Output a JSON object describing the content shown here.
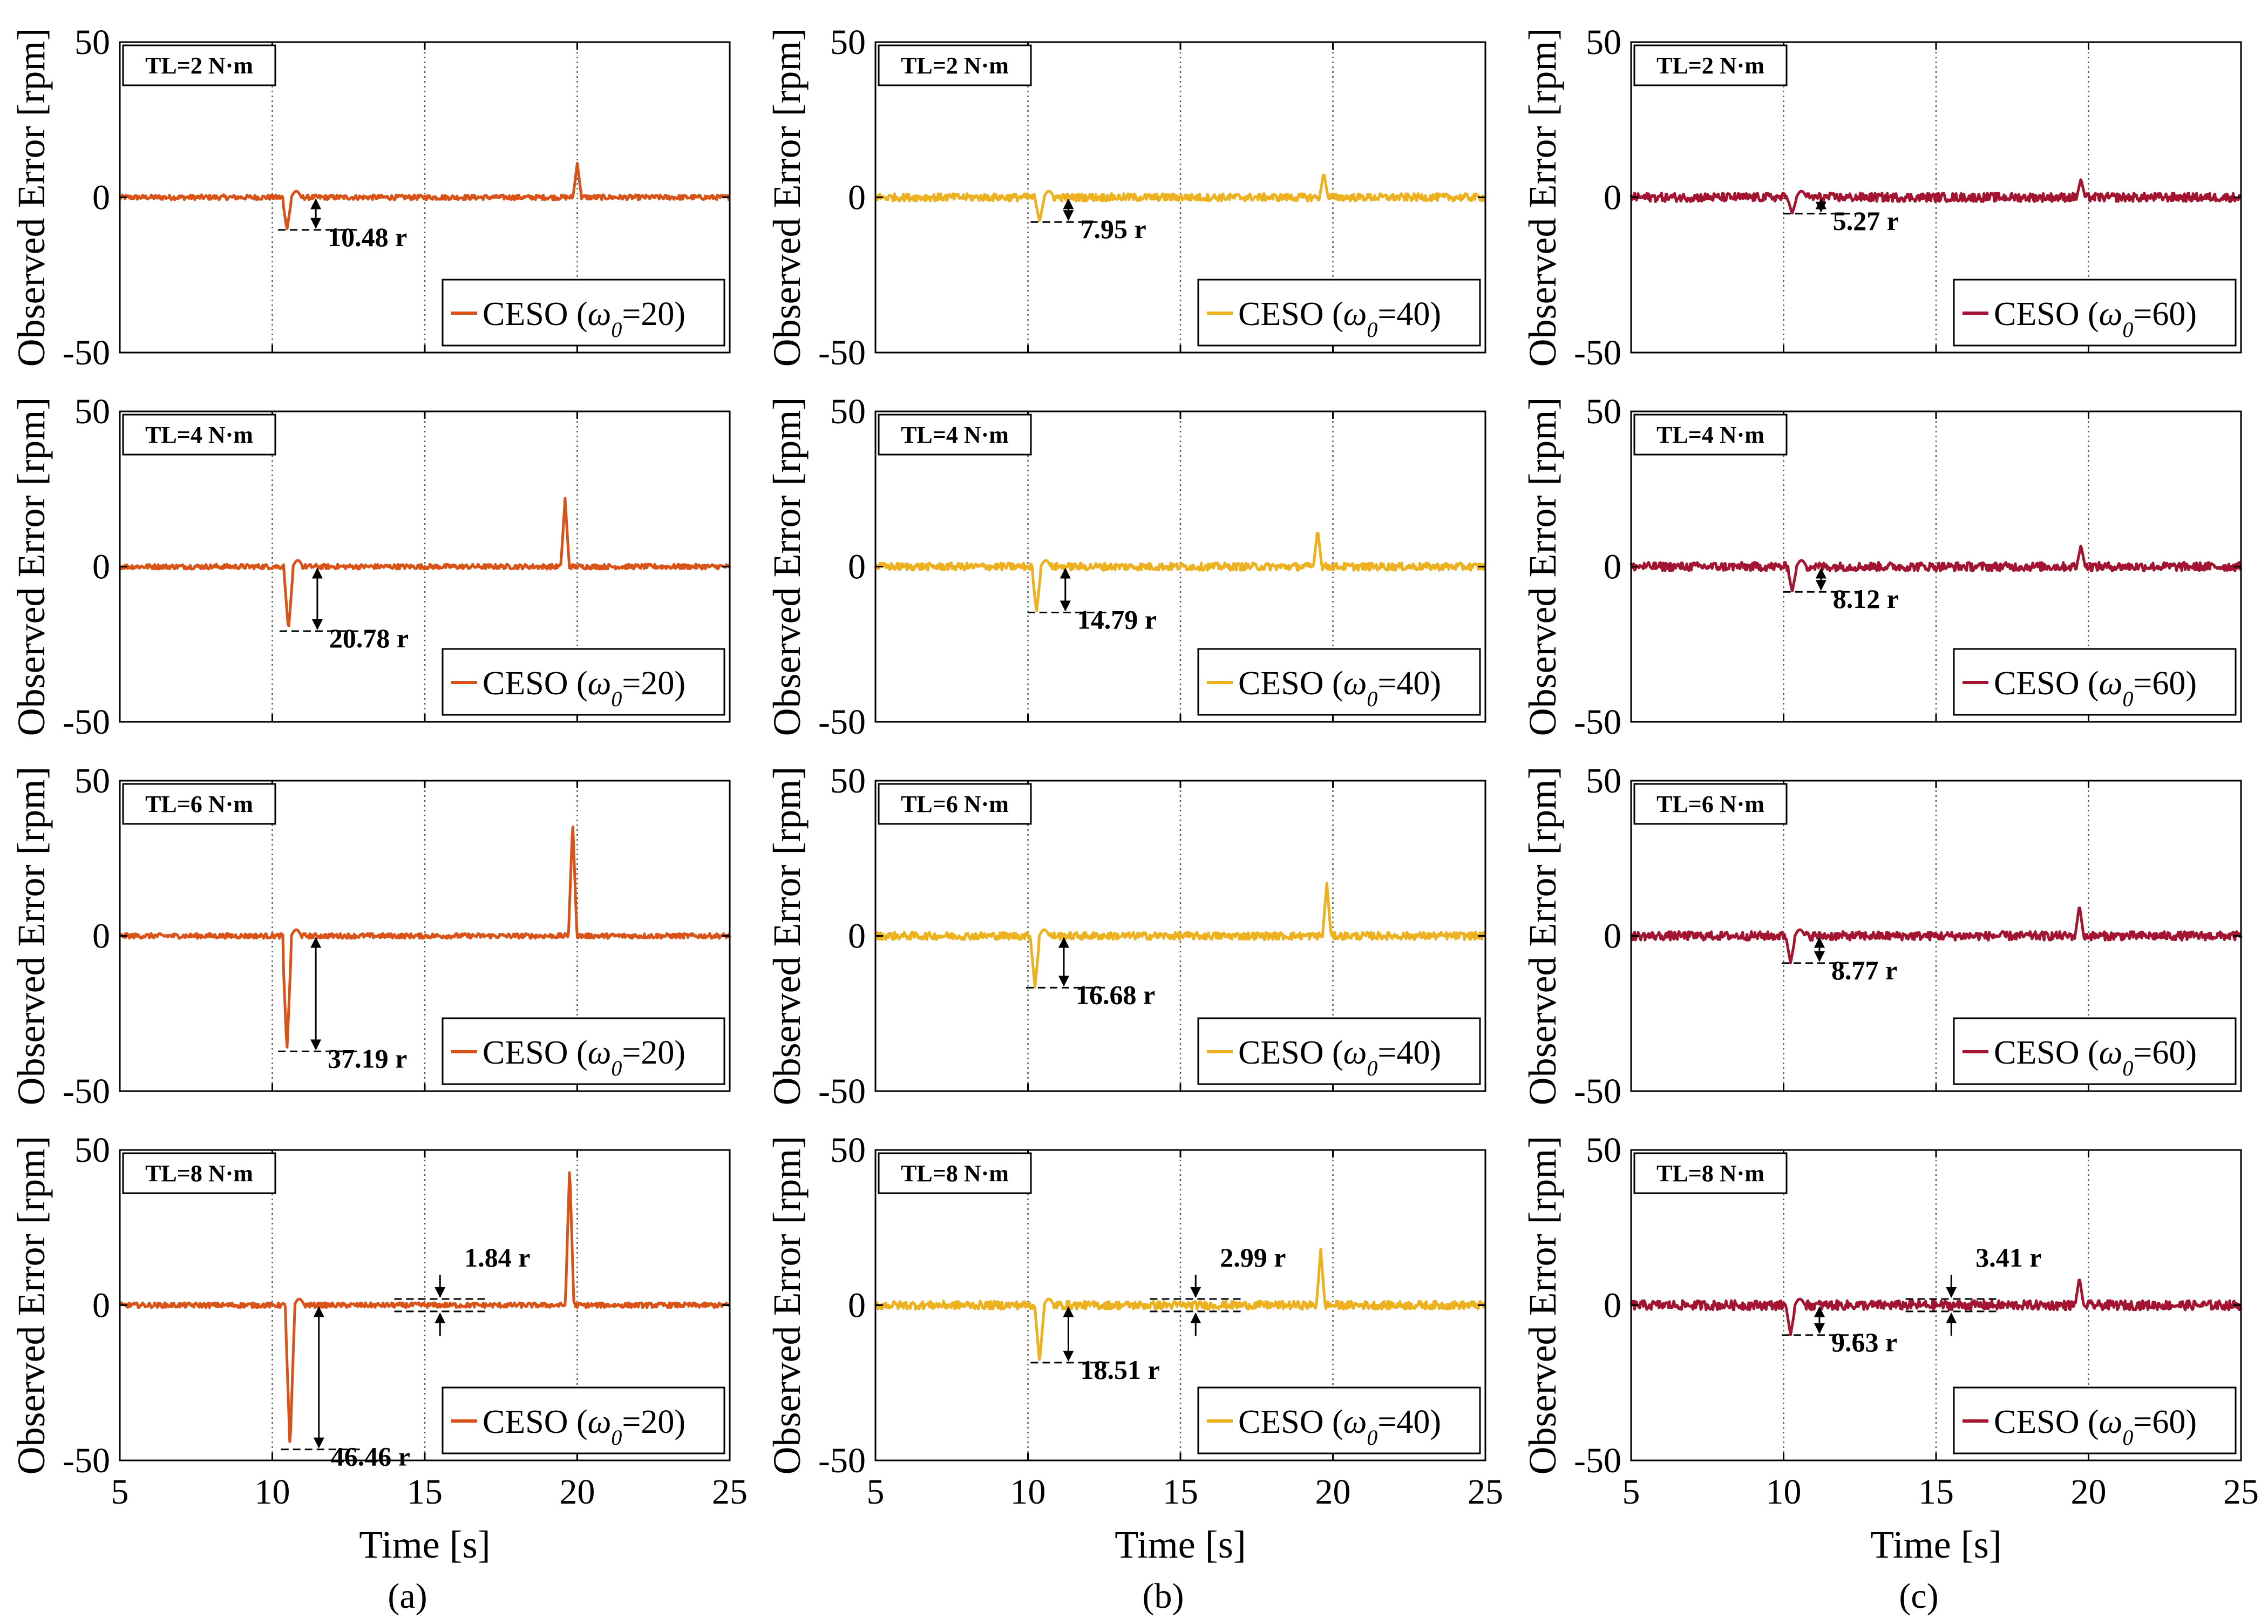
{
  "figure": {
    "captions": [
      "(a)",
      "(b)",
      "(c)"
    ]
  },
  "chart_data": [
    {
      "type": "line",
      "column": 0,
      "color": "#d95319",
      "legend": {
        "prefix": "CESO (",
        "symbol": "ω",
        "sub": "0",
        "suffix": "=20)"
      },
      "xlabel": "Time [s]",
      "ylabel": "Observed Error [rpm]",
      "xlim": [
        5,
        25
      ],
      "ylim": [
        -50,
        50
      ],
      "xticks": [
        "5",
        "10",
        "15",
        "20",
        "25"
      ],
      "yticks": [
        "50",
        "0",
        "-50"
      ],
      "gridlines_x": [
        10,
        15,
        20
      ],
      "panels": [
        {
          "tl_label": "TL=2 N·m",
          "dip_time": 10.4,
          "dip_value": -10.48,
          "peak_time": 20.0,
          "peak_value": 11,
          "noise": 0.8,
          "annotation": "10.48 r",
          "annotation_value": 10.48
        },
        {
          "tl_label": "TL=4 N·m",
          "dip_time": 10.45,
          "dip_value": -20.78,
          "peak_time": 19.6,
          "peak_value": 22,
          "noise": 0.8,
          "annotation": "20.78 r",
          "annotation_value": 20.78
        },
        {
          "tl_label": "TL=6 N·m",
          "dip_time": 10.4,
          "dip_value": -37.19,
          "peak_time": 19.85,
          "peak_value": 37,
          "noise": 0.8,
          "annotation": "37.19 r",
          "annotation_value": 37.19
        },
        {
          "tl_label": "TL=8 N·m",
          "dip_time": 10.5,
          "dip_value": -46.46,
          "peak_time": 19.75,
          "peak_value": 45,
          "noise": 0.8,
          "annotation": "46.46 r",
          "annotation_value": 46.46,
          "ripple_annotation": "1.84 r",
          "ripple_value": 1.84
        }
      ]
    },
    {
      "type": "line",
      "column": 1,
      "color": "#edb120",
      "legend": {
        "prefix": "CESO (",
        "symbol": "ω",
        "sub": "0",
        "suffix": "=40)"
      },
      "xlabel": "Time [s]",
      "ylabel": "Observed Error [rpm]",
      "xlim": [
        5,
        25
      ],
      "ylim": [
        -50,
        50
      ],
      "xticks": [
        "5",
        "10",
        "15",
        "20",
        "25"
      ],
      "yticks": [
        "50",
        "0",
        "-50"
      ],
      "gridlines_x": [
        10,
        15,
        20
      ],
      "panels": [
        {
          "tl_label": "TL=2 N·m",
          "dip_time": 10.3,
          "dip_value": -7.95,
          "peak_time": 19.7,
          "peak_value": 8,
          "noise": 1.2,
          "annotation": "7.95 r",
          "annotation_value": 7.95
        },
        {
          "tl_label": "TL=4 N·m",
          "dip_time": 10.2,
          "dip_value": -14.79,
          "peak_time": 19.5,
          "peak_value": 12,
          "noise": 1.2,
          "annotation": "14.79 r",
          "annotation_value": 14.79
        },
        {
          "tl_label": "TL=6 N·m",
          "dip_time": 10.15,
          "dip_value": -16.68,
          "peak_time": 19.8,
          "peak_value": 17,
          "noise": 1.2,
          "annotation": "16.68 r",
          "annotation_value": 16.68
        },
        {
          "tl_label": "TL=8 N·m",
          "dip_time": 10.3,
          "dip_value": -18.51,
          "peak_time": 19.6,
          "peak_value": 18,
          "noise": 1.3,
          "annotation": "18.51 r",
          "annotation_value": 18.51,
          "ripple_annotation": "2.99 r",
          "ripple_value": 2.99
        }
      ]
    },
    {
      "type": "line",
      "column": 2,
      "color": "#a2142f",
      "legend": {
        "prefix": "CESO (",
        "symbol": "ω",
        "sub": "0",
        "suffix": "=60)"
      },
      "xlabel": "Time [s]",
      "ylabel": "Observed Error [rpm]",
      "xlim": [
        5,
        25
      ],
      "ylim": [
        -50,
        50
      ],
      "xticks": [
        "5",
        "10",
        "15",
        "20",
        "25"
      ],
      "yticks": [
        "50",
        "0",
        "-50"
      ],
      "gridlines_x": [
        10,
        15,
        20
      ],
      "panels": [
        {
          "tl_label": "TL=2 N·m",
          "dip_time": 10.2,
          "dip_value": -5.27,
          "peak_time": 19.75,
          "peak_value": 6,
          "noise": 1.4,
          "annotation": "5.27 r",
          "annotation_value": 5.27
        },
        {
          "tl_label": "TL=4 N·m",
          "dip_time": 10.2,
          "dip_value": -8.12,
          "peak_time": 19.75,
          "peak_value": 7,
          "noise": 1.4,
          "annotation": "8.12 r",
          "annotation_value": 8.12
        },
        {
          "tl_label": "TL=6 N·m",
          "dip_time": 10.15,
          "dip_value": -8.77,
          "peak_time": 19.7,
          "peak_value": 10,
          "noise": 1.4,
          "annotation": "8.77 r",
          "annotation_value": 8.77
        },
        {
          "tl_label": "TL=8 N·m",
          "dip_time": 10.15,
          "dip_value": -9.63,
          "peak_time": 19.7,
          "peak_value": 9,
          "noise": 1.5,
          "annotation": "9.63 r",
          "annotation_value": 9.63,
          "ripple_annotation": "3.41 r",
          "ripple_value": 3.41
        }
      ]
    }
  ]
}
